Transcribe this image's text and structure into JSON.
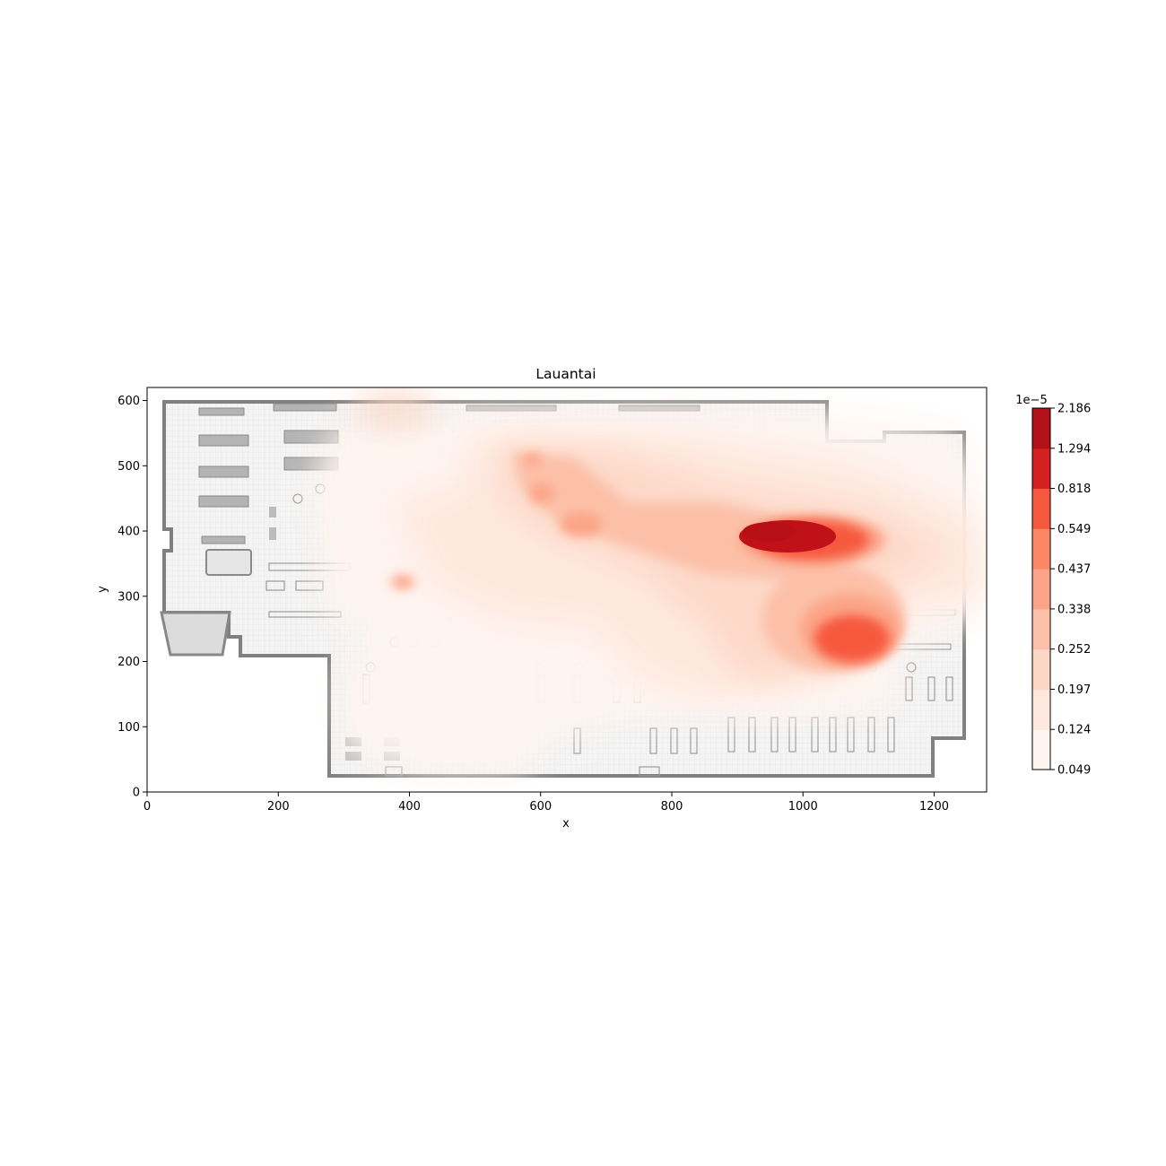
{
  "chart_data": {
    "type": "heatmap",
    "title": "Lauantai",
    "xlabel": "x",
    "ylabel": "y",
    "xlim": [
      0,
      1280
    ],
    "ylim": [
      0,
      620
    ],
    "x_ticks": [
      0,
      200,
      400,
      600,
      800,
      1000,
      1200
    ],
    "y_ticks": [
      0,
      100,
      200,
      300,
      400,
      500,
      600
    ],
    "grid": false,
    "background": "store floor plan (grayscale)",
    "colormap": "Reds",
    "colorbar": {
      "multiplier": "1e−5",
      "levels": [
        "0.049",
        "0.124",
        "0.197",
        "0.252",
        "0.338",
        "0.437",
        "0.549",
        "0.818",
        "1.294",
        "2.186"
      ],
      "colors": [
        "#fff5f0",
        "#fee8dd",
        "#fdd7c6",
        "#fcbfa7",
        "#fca487",
        "#fc8767",
        "#f6583e",
        "#d42020",
        "#b11117"
      ]
    },
    "hotspots": [
      {
        "x": 900,
        "y": 385,
        "level": 9
      },
      {
        "x": 960,
        "y": 225,
        "level": 8
      },
      {
        "x": 395,
        "y": 318,
        "level": 7
      },
      {
        "x": 590,
        "y": 510,
        "level": 6
      },
      {
        "x": 605,
        "y": 455,
        "level": 6
      },
      {
        "x": 670,
        "y": 415,
        "level": 5
      },
      {
        "x": 520,
        "y": 82,
        "level": 3
      },
      {
        "x": 420,
        "y": 455,
        "level": 3
      }
    ]
  }
}
